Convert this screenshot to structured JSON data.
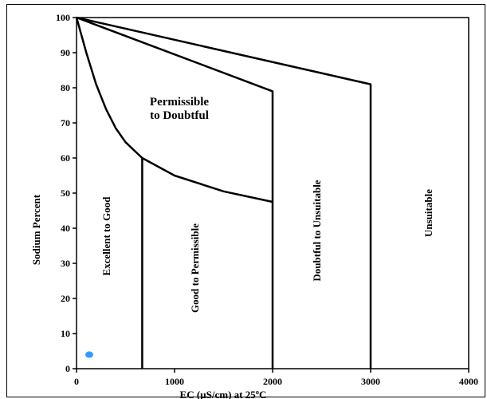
{
  "chart_data": {
    "type": "scatter",
    "title": "",
    "xlabel": "EC (µS/cm) at 25ºC",
    "ylabel": "Sodium Percent",
    "xlim": [
      0,
      4000
    ],
    "ylim": [
      0,
      100
    ],
    "x_ticks": [
      "0",
      "1000",
      "2000",
      "3000",
      "4000"
    ],
    "y_ticks": [
      "0",
      "10",
      "20",
      "30",
      "40",
      "50",
      "60",
      "70",
      "80",
      "90",
      "100"
    ],
    "grid": false,
    "point_color": "#3399ff",
    "points": [
      {
        "x": 130,
        "y": 4
      }
    ],
    "boundaries": [
      {
        "name": "upper",
        "points": [
          [
            0,
            100
          ],
          [
            3000,
            81
          ],
          [
            3000,
            0
          ]
        ]
      },
      {
        "name": "middle",
        "points": [
          [
            0,
            100
          ],
          [
            2000,
            79
          ],
          [
            2000,
            0
          ]
        ]
      },
      {
        "name": "lower",
        "points": [
          [
            0,
            100
          ],
          [
            100,
            90
          ],
          [
            200,
            81
          ],
          [
            300,
            74
          ],
          [
            400,
            68.5
          ],
          [
            500,
            64.5
          ],
          [
            670,
            60
          ],
          [
            1000,
            55
          ],
          [
            1500,
            50.5
          ],
          [
            2000,
            47.5
          ]
        ]
      },
      {
        "name": "divider",
        "points": [
          [
            670,
            60
          ],
          [
            670,
            0
          ]
        ]
      }
    ],
    "regions": [
      {
        "label_lines": [
          "Permissible",
          "to Doubtful"
        ]
      },
      {
        "label_lines": [
          "Excellent to Good"
        ]
      },
      {
        "label_lines": [
          "Good to Permissible"
        ]
      },
      {
        "label_lines": [
          "Doubtful to Unsuitable"
        ]
      },
      {
        "label_lines": [
          "Unsuitable"
        ]
      }
    ]
  }
}
